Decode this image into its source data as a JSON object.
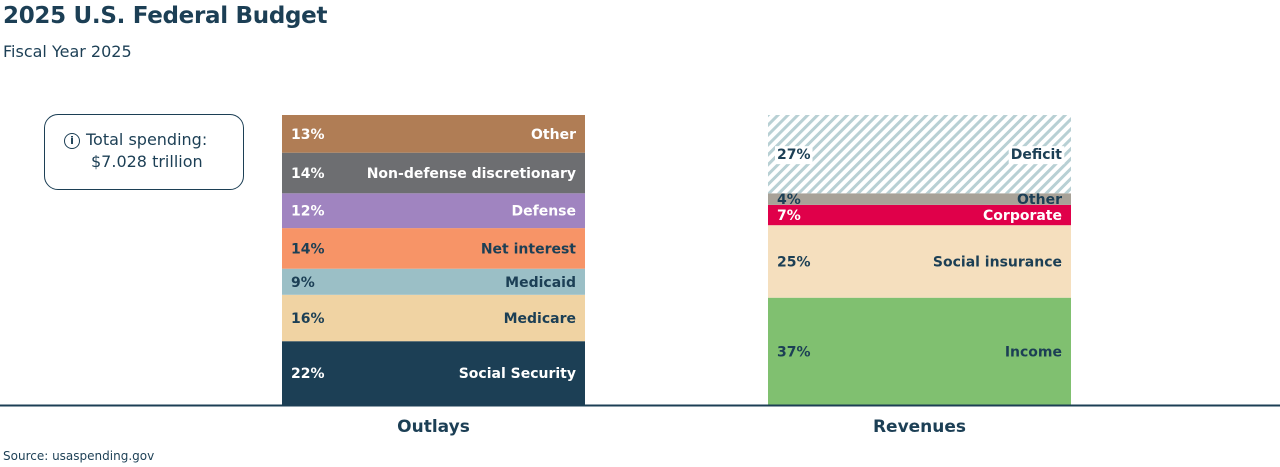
{
  "title": "2025 U.S. Federal Budget",
  "subtitle": "Fiscal Year 2025",
  "info_box": {
    "icon": "info-icon",
    "line1": "Total spending:",
    "line2": "$7.028 trillion"
  },
  "source": "Source: usaspending.gov",
  "chart_data": {
    "type": "bar",
    "stacked": true,
    "unit": "%",
    "ylim": [
      0,
      100
    ],
    "categories": [
      "Outlays",
      "Revenues"
    ],
    "bars": [
      {
        "category": "Outlays",
        "segments": [
          {
            "name": "Social Security",
            "value": 22,
            "color": "#1c3f55",
            "text_color": "#ffffff"
          },
          {
            "name": "Medicare",
            "value": 16,
            "color": "#f0d3a3",
            "text_color": "#1c3f55"
          },
          {
            "name": "Medicaid",
            "value": 9,
            "color": "#9bbfc6",
            "text_color": "#1c3f55"
          },
          {
            "name": "Net interest",
            "value": 14,
            "color": "#f79467",
            "text_color": "#1c3f55"
          },
          {
            "name": "Defense",
            "value": 12,
            "color": "#a084c0",
            "text_color": "#ffffff"
          },
          {
            "name": "Non-defense discretionary",
            "value": 14,
            "color": "#6d6e71",
            "text_color": "#ffffff"
          },
          {
            "name": "Other",
            "value": 13,
            "color": "#b07d55",
            "text_color": "#ffffff"
          }
        ]
      },
      {
        "category": "Revenues",
        "segments": [
          {
            "name": "Income",
            "value": 37,
            "color": "#80c070",
            "text_color": "#1c3f55"
          },
          {
            "name": "Social insurance",
            "value": 25,
            "color": "#f5dfbe",
            "text_color": "#1c3f55"
          },
          {
            "name": "Corporate",
            "value": 7,
            "color": "#e0004a",
            "text_color": "#ffffff"
          },
          {
            "name": "Other",
            "value": 4,
            "color": "#a8a298",
            "text_color": "#1c3f55"
          },
          {
            "name": "Deficit",
            "value": 27,
            "color": "#b8d0d4",
            "pattern": "diagonal-hatch",
            "text_color": "#1c3f55"
          }
        ]
      }
    ]
  }
}
